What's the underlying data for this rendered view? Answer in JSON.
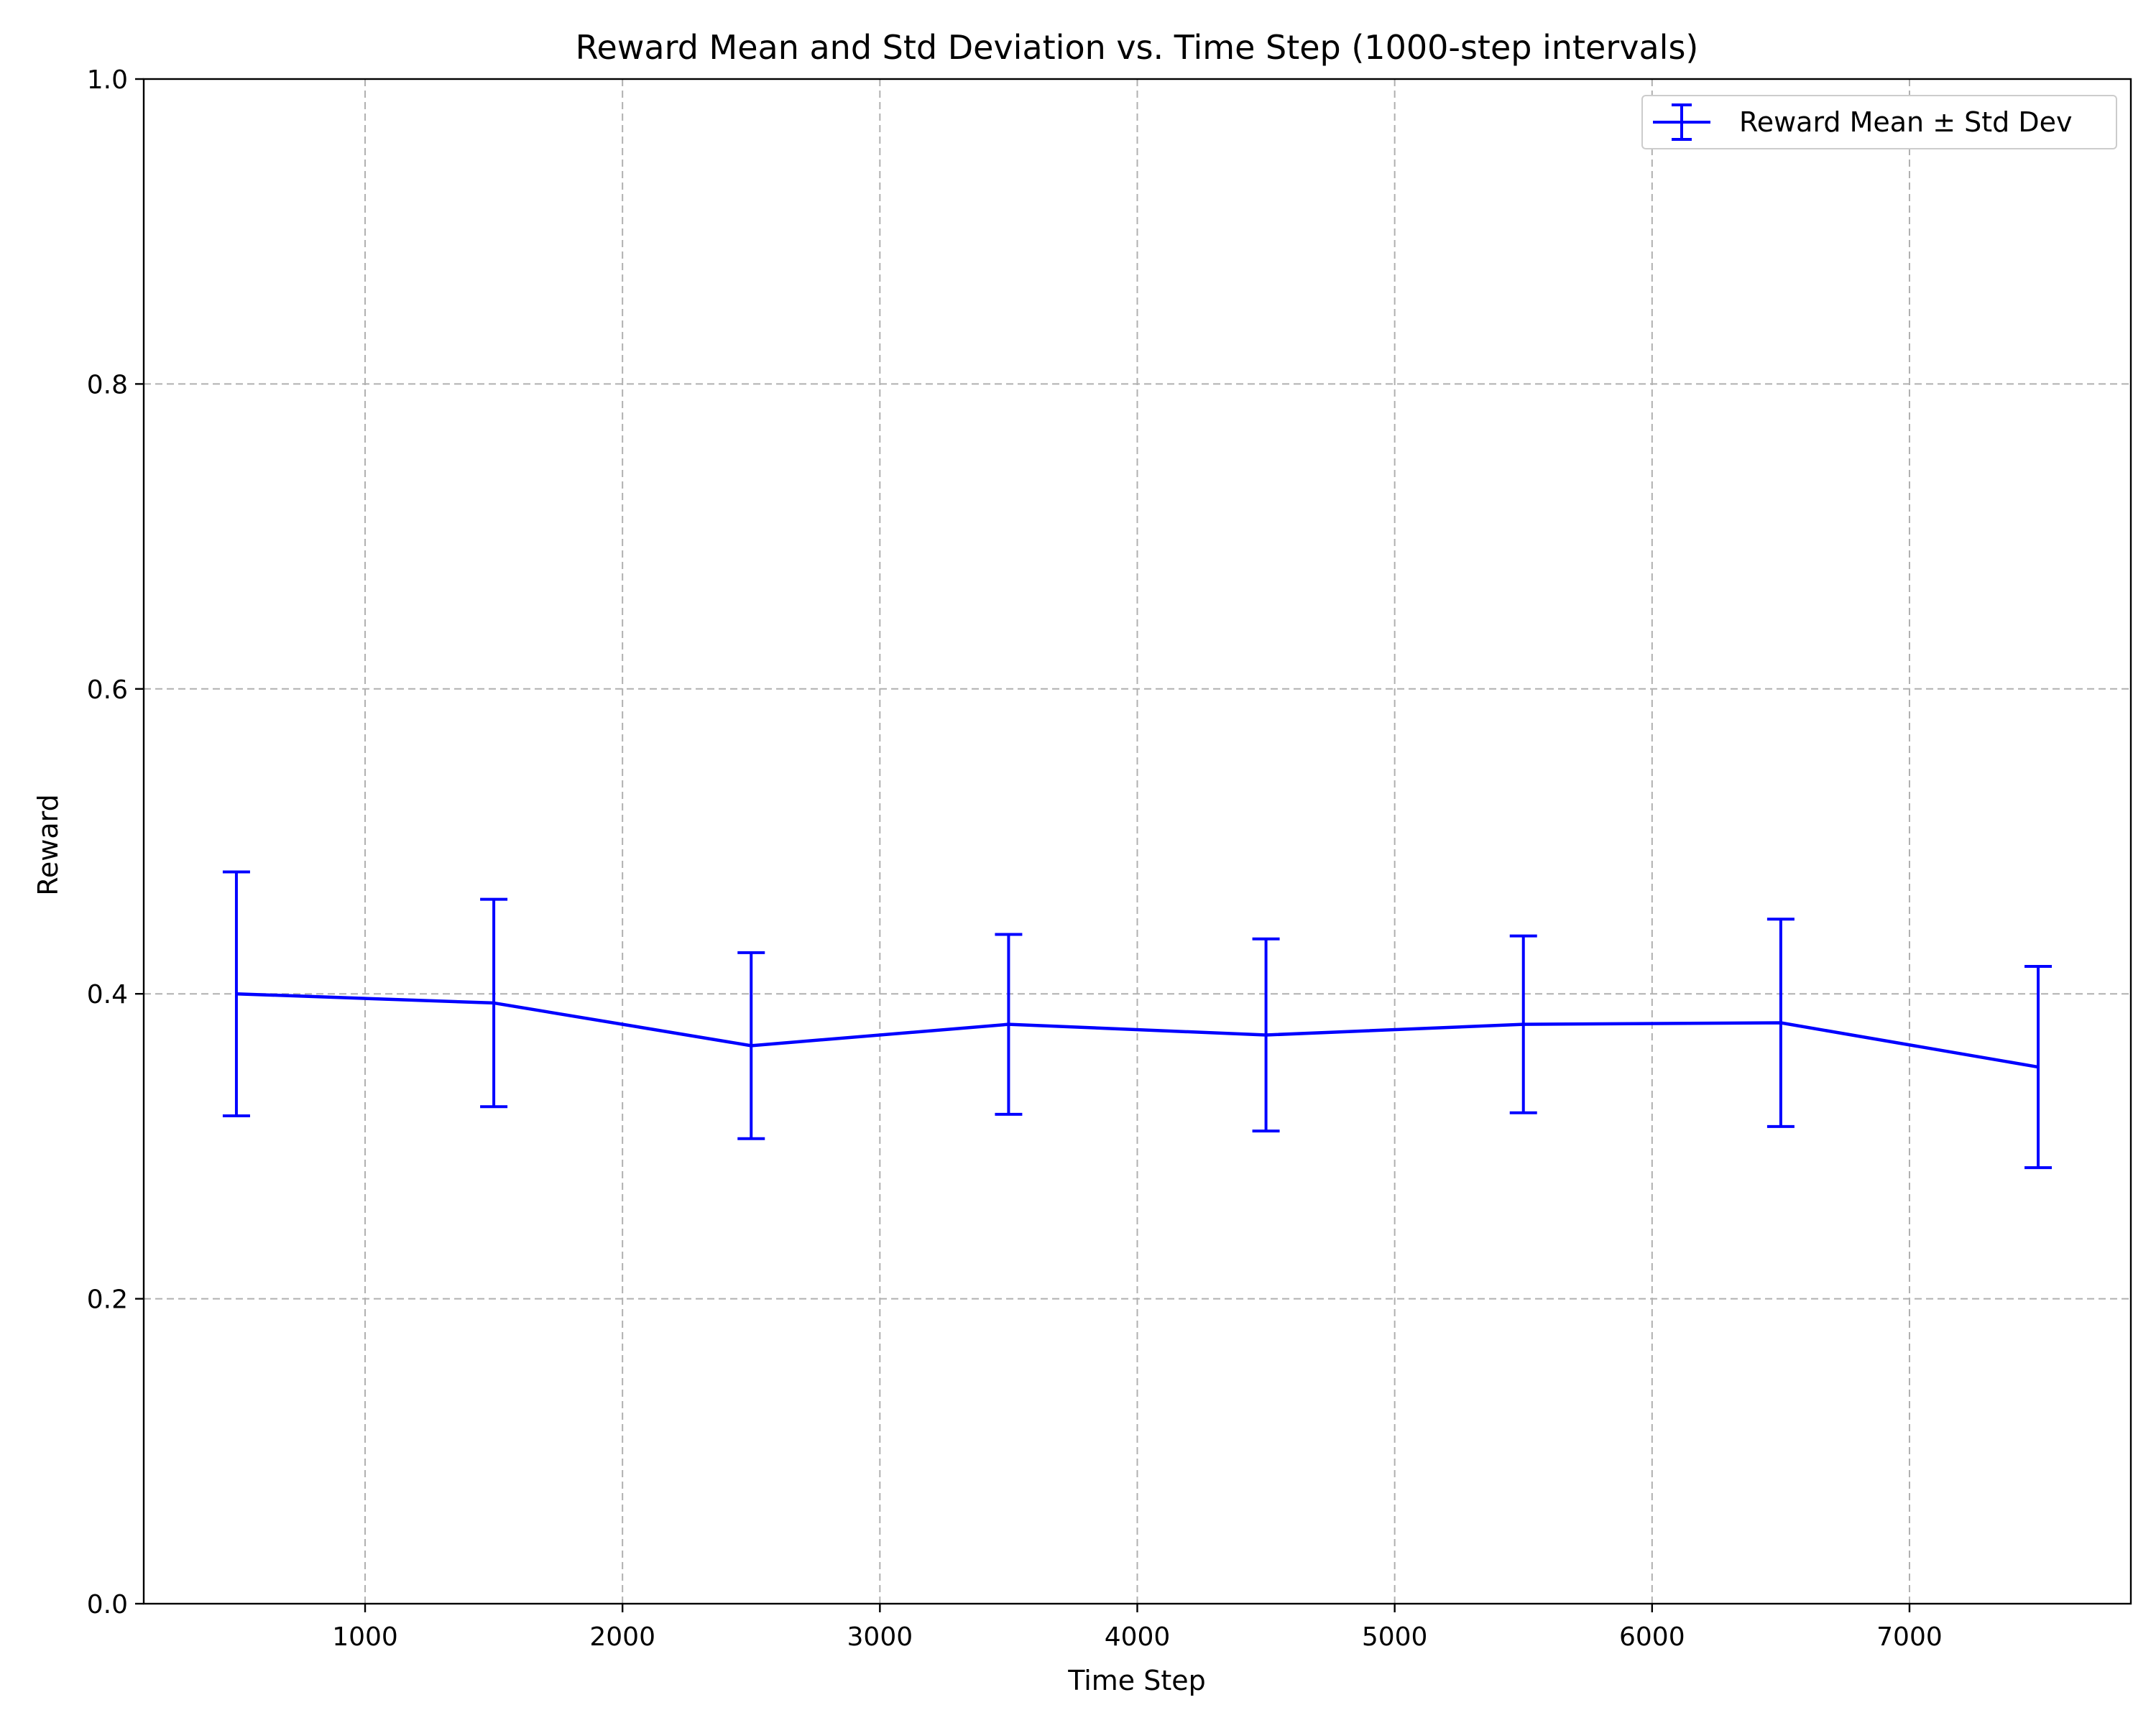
{
  "chart_data": {
    "type": "line",
    "title": "Reward Mean and Std Deviation vs. Time Step (1000-step intervals)",
    "xlabel": "Time Step",
    "ylabel": "Reward",
    "xlim": [
      140,
      7860
    ],
    "ylim": [
      0.0,
      1.0
    ],
    "x_ticks": [
      1000,
      2000,
      3000,
      4000,
      5000,
      6000,
      7000
    ],
    "y_ticks": [
      0.0,
      0.2,
      0.4,
      0.6,
      0.8,
      1.0
    ],
    "x_tick_labels": [
      "1000",
      "2000",
      "3000",
      "4000",
      "5000",
      "6000",
      "7000"
    ],
    "y_tick_labels": [
      "0.0",
      "0.2",
      "0.4",
      "0.6",
      "0.8",
      "1.0"
    ],
    "grid": true,
    "legend_position": "top-right",
    "series": [
      {
        "name": "Reward Mean ± Std Dev",
        "color": "#0000ff",
        "x": [
          500,
          1500,
          2500,
          3500,
          4500,
          5500,
          6500,
          7500
        ],
        "y": [
          0.4,
          0.394,
          0.366,
          0.38,
          0.373,
          0.38,
          0.381,
          0.352
        ],
        "yerr": [
          0.08,
          0.068,
          0.061,
          0.059,
          0.063,
          0.058,
          0.068,
          0.066
        ]
      }
    ]
  }
}
